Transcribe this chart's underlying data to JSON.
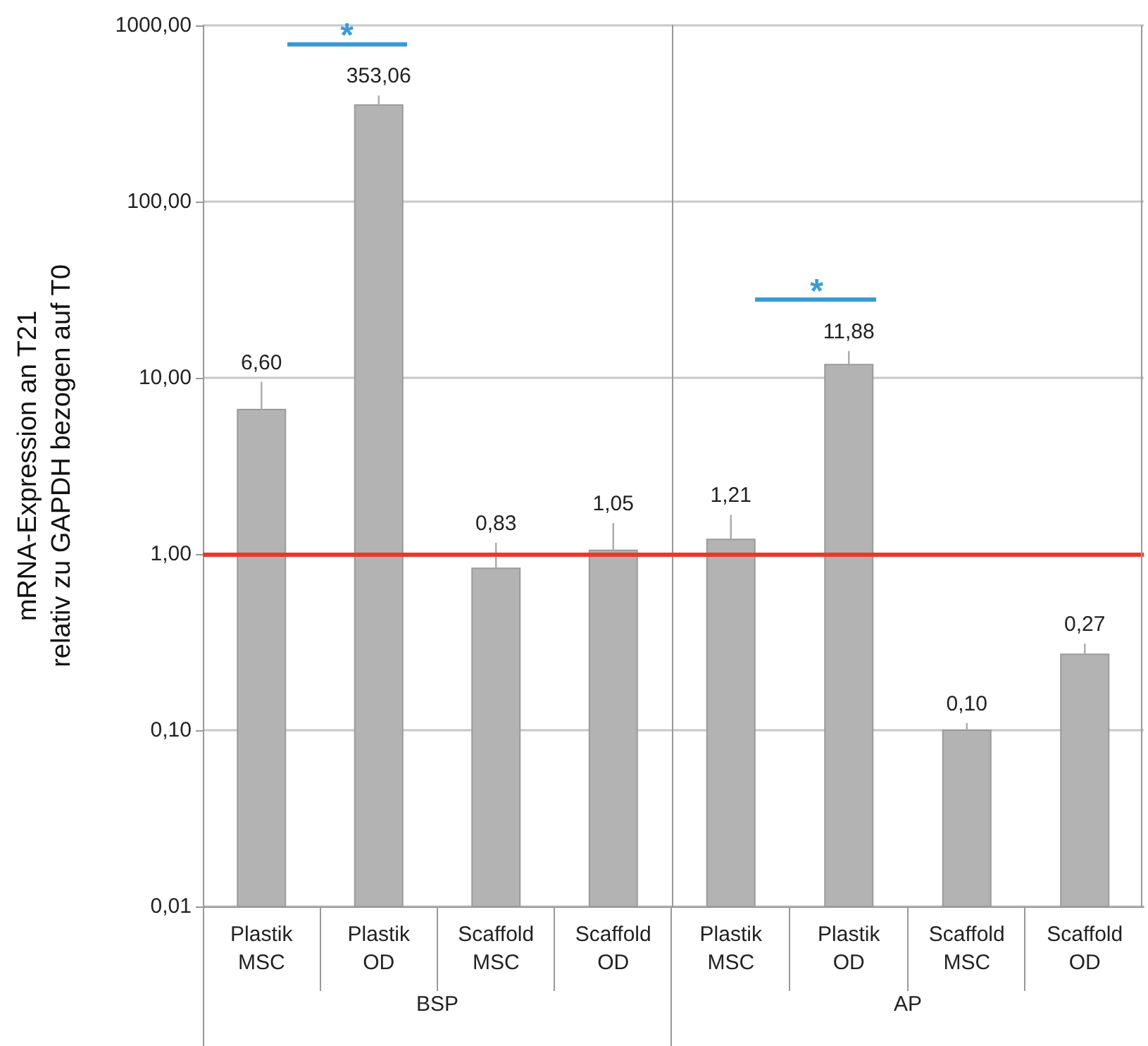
{
  "chart_data": [
    {
      "type": "bar",
      "ylabel": "mRNA-Expression an T21\nrelativ zu GAPDH bezogen auf T0",
      "xlabel": "BSP",
      "categories": [
        "Plastik MSC",
        "Plastik OD",
        "Scaffold MSC",
        "Scaffold OD"
      ],
      "values": [
        6.6,
        353.06,
        0.83,
        1.05
      ],
      "errors": [
        [
          6.6,
          9.5
        ],
        [
          353.06,
          400
        ],
        [
          0.83,
          1.16
        ],
        [
          1.05,
          1.5
        ]
      ],
      "value_labels": [
        "6,60",
        "353,06",
        "0,83",
        "1,05"
      ],
      "color": "#b3b3b3",
      "log": "y",
      "ylim": [
        0.01,
        1000
      ],
      "yticks": [
        {
          "value": 0.01,
          "label": "0,01"
        },
        {
          "value": 0.1,
          "label": "0,10"
        },
        {
          "value": 1,
          "label": "1,00"
        },
        {
          "value": 10,
          "label": "10,00"
        },
        {
          "value": 100,
          "label": "100,00"
        },
        {
          "value": 1000,
          "label": "1000,00"
        }
      ],
      "grid": "y",
      "ref_lines": [
        {
          "axis": "y",
          "value": 1,
          "color": "#e8392a"
        }
      ],
      "annotations": [
        "*"
      ]
    },
    {
      "type": "bar",
      "xlabel": "AP",
      "categories": [
        "Plastik MSC",
        "Plastik OD",
        "Scaffold MSC",
        "Scaffold OD"
      ],
      "values": [
        1.21,
        11.88,
        0.1,
        0.27
      ],
      "errors": [
        [
          1.21,
          1.67
        ],
        [
          11.88,
          14.2
        ],
        [
          0.1,
          0.11
        ],
        [
          0.27,
          0.31
        ]
      ],
      "value_labels": [
        "1,21",
        "11,88",
        "0,10",
        "0,27"
      ],
      "color": "#b3b3b3",
      "log": "y",
      "ylim": [
        0.01,
        1000
      ],
      "grid": "y",
      "tick_labels": "x",
      "ref_lines": [
        {
          "axis": "y",
          "value": 1,
          "color": "#e8392a"
        }
      ],
      "annotations": [
        "*"
      ]
    }
  ]
}
